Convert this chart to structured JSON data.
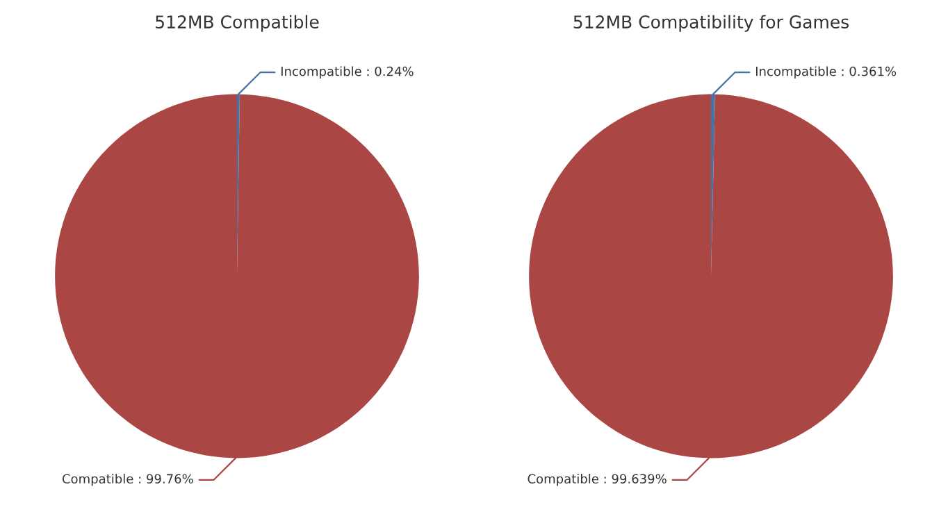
{
  "chart_data": [
    {
      "type": "pie",
      "title": "512MB Compatible",
      "categories": [
        "Incompatible",
        "Compatible"
      ],
      "values": [
        0.24,
        99.76
      ],
      "colors": [
        "#4572a7",
        "#aa4643"
      ],
      "value_labels": [
        "0.24%",
        "99.76%"
      ]
    },
    {
      "type": "pie",
      "title": "512MB Compatibility for Games",
      "categories": [
        "Incompatible",
        "Compatible"
      ],
      "values": [
        0.361,
        99.639
      ],
      "colors": [
        "#4572a7",
        "#aa4643"
      ],
      "value_labels": [
        "0.361%",
        "99.639%"
      ]
    }
  ]
}
